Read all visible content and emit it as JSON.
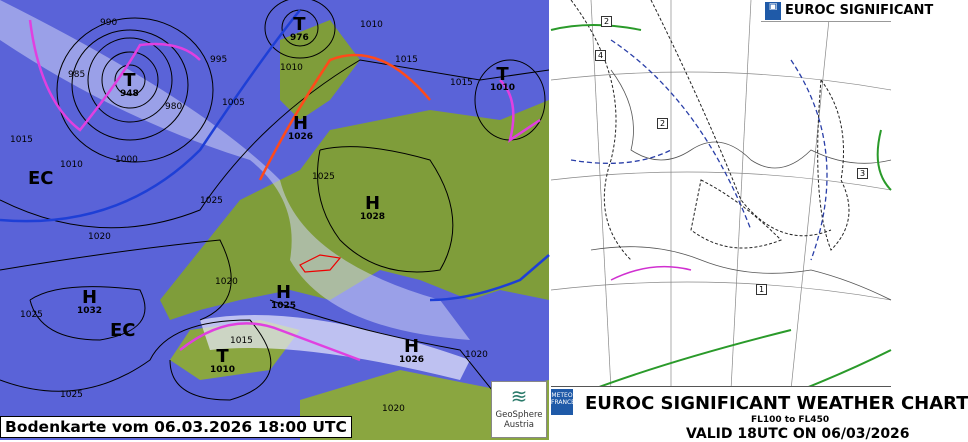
{
  "left_map": {
    "caption": "Bodenkarte vom 06.03.2026 18:00 UTC",
    "logo": {
      "name": "GeoSphere",
      "sub": "Austria"
    },
    "pressure_centers": [
      {
        "type": "T",
        "value": "948"
      },
      {
        "type": "T",
        "value": "976"
      },
      {
        "type": "T",
        "value": "1010"
      },
      {
        "type": "H",
        "value": "1026"
      },
      {
        "type": "H",
        "value": "1028"
      },
      {
        "type": "H",
        "value": "1032"
      },
      {
        "type": "H",
        "value": "1025"
      },
      {
        "type": "H",
        "value": "1026"
      },
      {
        "type": "T",
        "value": "1010"
      }
    ],
    "ec_labels": [
      "EC",
      "EC"
    ],
    "isobar_labels": [
      "990",
      "985",
      "995",
      "1005",
      "980",
      "1010",
      "1015",
      "1000",
      "1010",
      "1015",
      "1020",
      "1025",
      "1025",
      "1025",
      "1020",
      "1015",
      "1020",
      "1025",
      "1020",
      "1010",
      "1015"
    ],
    "colors": {
      "sea": "#5a63d8",
      "land": "#7f9d3a",
      "cold_front": "#1e3fd6",
      "warm_front": "#ff4a1a",
      "occlusion": "#e040e0"
    }
  },
  "right_map": {
    "header": "EUROC SIGNIFICANT",
    "title": "EUROC SIGNIFICANT WEATHER CHART",
    "levels": "FL100 to FL450",
    "valid": "VALID 18UTC ON 06/03/2026",
    "badge": "METEO FRANCE",
    "area_numbers": [
      "2",
      "4",
      "2",
      "3",
      "1"
    ]
  }
}
